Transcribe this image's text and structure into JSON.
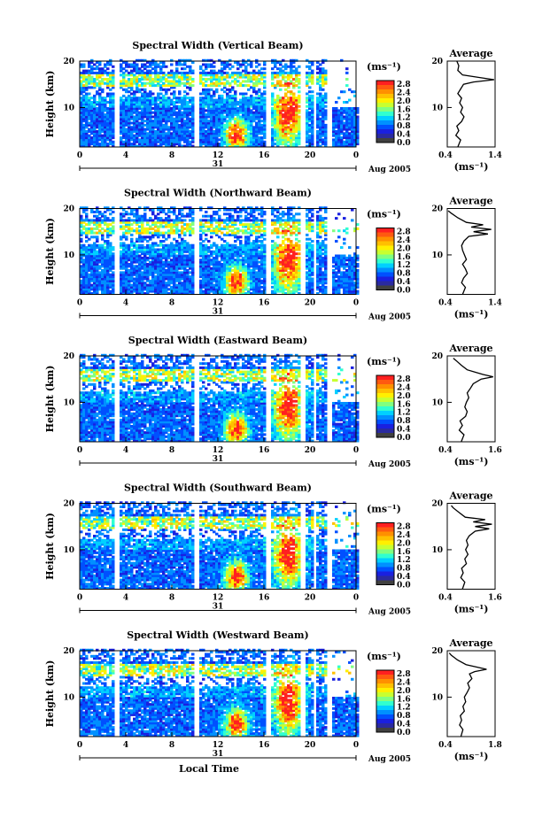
{
  "figure": {
    "xlabel": "Local Time",
    "date_day": "31",
    "date_month": "Aug 2005",
    "unit": "(ms⁻¹)",
    "avg_title": "Average",
    "avg_xlabel": "(ms⁻¹)",
    "ylabel": "Height (km)"
  },
  "colorbar": {
    "ticks": [
      "2.8",
      "2.4",
      "2.0",
      "1.6",
      "1.2",
      "0.8",
      "0.4",
      "0.0"
    ],
    "colors": [
      "#ff2020",
      "#ff5a10",
      "#ff9000",
      "#ffc000",
      "#fff000",
      "#c8ff30",
      "#80ff80",
      "#30ffd0",
      "#00d0ff",
      "#0090ff",
      "#0050ff",
      "#1a20e0",
      "#2a2aa0",
      "#404040"
    ]
  },
  "chart_data": [
    {
      "type": "heatmap",
      "title": "Spectral Width (Vertical Beam)",
      "x_ticks": [
        "0",
        "4",
        "8",
        "12",
        "16",
        "20",
        "0"
      ],
      "y_ticks": [
        "20",
        "10"
      ],
      "xlim": [
        0,
        24
      ],
      "ylim": [
        1.5,
        20
      ],
      "gaps": [
        3.2,
        10.0,
        16.3,
        19.2,
        20.3,
        21.6
      ],
      "avg": {
        "xlim": [
          0.4,
          1.4
        ],
        "x_ticks": [
          "0.4",
          "1.4"
        ],
        "y_ticks": [
          "20",
          "10"
        ],
        "profile": [
          [
            1.5,
            0.62
          ],
          [
            3,
            0.68
          ],
          [
            4,
            0.58
          ],
          [
            5,
            0.64
          ],
          [
            6,
            0.6
          ],
          [
            7,
            0.7
          ],
          [
            8,
            0.75
          ],
          [
            9,
            0.68
          ],
          [
            10,
            0.72
          ],
          [
            11,
            0.66
          ],
          [
            12,
            0.7
          ],
          [
            13,
            0.62
          ],
          [
            14,
            0.68
          ],
          [
            15,
            0.74
          ],
          [
            15.5,
            0.95
          ],
          [
            16,
            1.38
          ],
          [
            16.5,
            1.05
          ],
          [
            17,
            0.72
          ],
          [
            18,
            0.62
          ],
          [
            19,
            0.64
          ],
          [
            20,
            0.6
          ]
        ]
      }
    },
    {
      "type": "heatmap",
      "title": "Spectral Width (Northward Beam)",
      "x_ticks": [
        "0",
        "4",
        "8",
        "12",
        "16",
        "20",
        "0"
      ],
      "y_ticks": [
        "20",
        "10"
      ],
      "xlim": [
        0,
        24
      ],
      "ylim": [
        1.5,
        20
      ],
      "gaps": [
        3.2,
        10.0,
        16.3,
        19.2,
        20.3,
        21.6
      ],
      "avg": {
        "xlim": [
          0.4,
          1.4
        ],
        "x_ticks": [
          "0.4",
          "1.4"
        ],
        "y_ticks": [
          "20",
          "10"
        ],
        "profile": [
          [
            1.5,
            0.72
          ],
          [
            3,
            0.78
          ],
          [
            4,
            0.7
          ],
          [
            5,
            0.74
          ],
          [
            6,
            0.82
          ],
          [
            7,
            0.78
          ],
          [
            8,
            0.72
          ],
          [
            9,
            0.8
          ],
          [
            10,
            0.76
          ],
          [
            11,
            0.72
          ],
          [
            12,
            0.7
          ],
          [
            13,
            0.75
          ],
          [
            14,
            0.85
          ],
          [
            14.5,
            1.25
          ],
          [
            15,
            0.95
          ],
          [
            15.5,
            1.32
          ],
          [
            16,
            0.9
          ],
          [
            16.5,
            1.15
          ],
          [
            17,
            0.8
          ],
          [
            18,
            0.62
          ],
          [
            19,
            0.48
          ],
          [
            19.5,
            0.42
          ]
        ]
      }
    },
    {
      "type": "heatmap",
      "title": "Spectral Width (Eastward Beam)",
      "x_ticks": [
        "0",
        "4",
        "8",
        "12",
        "16",
        "20",
        "0"
      ],
      "y_ticks": [
        "20",
        "10"
      ],
      "xlim": [
        0,
        24
      ],
      "ylim": [
        1.5,
        20
      ],
      "gaps": [
        3.2,
        10.0,
        16.3,
        19.2,
        20.3,
        21.6
      ],
      "avg": {
        "xlim": [
          0.4,
          1.6
        ],
        "x_ticks": [
          "0.4",
          "1.6"
        ],
        "y_ticks": [
          "20",
          "10"
        ],
        "profile": [
          [
            1.5,
            0.75
          ],
          [
            3,
            0.82
          ],
          [
            4,
            0.7
          ],
          [
            5,
            0.78
          ],
          [
            6,
            0.72
          ],
          [
            7,
            0.86
          ],
          [
            8,
            0.9
          ],
          [
            9,
            0.84
          ],
          [
            10,
            0.88
          ],
          [
            11,
            0.94
          ],
          [
            12,
            0.9
          ],
          [
            13,
            0.98
          ],
          [
            14,
            1.05
          ],
          [
            15,
            1.25
          ],
          [
            15.5,
            1.55
          ],
          [
            16,
            1.3
          ],
          [
            16.5,
            1.1
          ],
          [
            17,
            0.9
          ],
          [
            18,
            0.75
          ],
          [
            19,
            0.62
          ],
          [
            19.5,
            0.55
          ]
        ]
      }
    },
    {
      "type": "heatmap",
      "title": "Spectral Width (Southward Beam)",
      "x_ticks": [
        "0",
        "4",
        "8",
        "12",
        "16",
        "20",
        "0"
      ],
      "y_ticks": [
        "20",
        "10"
      ],
      "xlim": [
        0,
        24
      ],
      "ylim": [
        1.5,
        20
      ],
      "gaps": [
        3.2,
        10.0,
        16.3,
        19.2,
        20.3,
        21.6
      ],
      "avg": {
        "xlim": [
          0.4,
          1.6
        ],
        "x_ticks": [
          "0.4",
          "1.6"
        ],
        "y_ticks": [
          "20",
          "10"
        ],
        "profile": [
          [
            1.5,
            0.78
          ],
          [
            3,
            0.84
          ],
          [
            4,
            0.74
          ],
          [
            5,
            0.8
          ],
          [
            6,
            0.76
          ],
          [
            7,
            0.88
          ],
          [
            8,
            0.84
          ],
          [
            9,
            0.92
          ],
          [
            10,
            0.86
          ],
          [
            11,
            0.92
          ],
          [
            12,
            0.88
          ],
          [
            13,
            0.95
          ],
          [
            14,
            1.1
          ],
          [
            14.5,
            1.45
          ],
          [
            15,
            1.1
          ],
          [
            15.5,
            1.52
          ],
          [
            16,
            1.05
          ],
          [
            16.5,
            1.35
          ],
          [
            17,
            0.85
          ],
          [
            18,
            0.7
          ],
          [
            19,
            0.55
          ],
          [
            19.5,
            0.5
          ]
        ]
      }
    },
    {
      "type": "heatmap",
      "title": "Spectral Width (Westward Beam)",
      "x_ticks": [
        "0",
        "4",
        "8",
        "12",
        "16",
        "20",
        "0"
      ],
      "y_ticks": [
        "20",
        "10"
      ],
      "xlim": [
        0,
        24
      ],
      "ylim": [
        1.5,
        20
      ],
      "gaps": [
        3.2,
        10.0,
        16.3,
        19.2,
        20.3,
        21.6
      ],
      "avg": {
        "xlim": [
          0.4,
          1.8
        ],
        "x_ticks": [
          "0.4",
          "1.8"
        ],
        "y_ticks": [
          "20",
          "10"
        ],
        "profile": [
          [
            1.5,
            0.8
          ],
          [
            3,
            0.86
          ],
          [
            4,
            0.76
          ],
          [
            5,
            0.82
          ],
          [
            6,
            0.78
          ],
          [
            7,
            0.9
          ],
          [
            8,
            0.86
          ],
          [
            9,
            0.94
          ],
          [
            10,
            0.9
          ],
          [
            11,
            0.98
          ],
          [
            12,
            1.05
          ],
          [
            13,
            1.0
          ],
          [
            14,
            1.12
          ],
          [
            15,
            1.05
          ],
          [
            15.5,
            1.2
          ],
          [
            16,
            1.55
          ],
          [
            16.5,
            1.25
          ],
          [
            17,
            0.95
          ],
          [
            18,
            0.7
          ],
          [
            19,
            0.52
          ],
          [
            19.5,
            0.46
          ]
        ]
      }
    }
  ]
}
